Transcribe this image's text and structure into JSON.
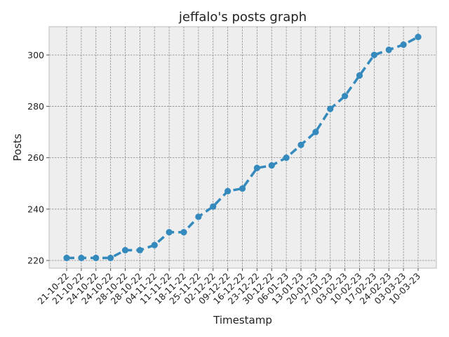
{
  "chart_data": {
    "type": "line",
    "title": "jeffalo's posts graph",
    "xlabel": "Timestamp",
    "ylabel": "Posts",
    "categories": [
      "21-10-22",
      "21-10-22",
      "24-10-22",
      "24-10-22",
      "28-10-22",
      "28-10-22",
      "04-11-22",
      "11-11-22",
      "18-11-22",
      "25-11-22",
      "02-12-22",
      "09-12-22",
      "16-12-22",
      "23-12-22",
      "30-12-22",
      "06-01-23",
      "13-01-23",
      "20-01-23",
      "27-01-23",
      "03-02-23",
      "10-02-23",
      "17-02-23",
      "24-02-23",
      "03-03-23",
      "10-03-23"
    ],
    "series": [
      {
        "values": [
          221,
          221,
          221,
          221,
          224,
          224,
          226,
          231,
          231,
          237,
          241,
          247,
          248,
          256,
          257,
          260,
          265,
          270,
          279,
          284,
          292,
          300,
          302,
          304,
          307
        ],
        "color": "#348abd",
        "line_style": "dashed",
        "marker": "circle"
      }
    ],
    "ylim": [
      217,
      311
    ],
    "yticks": [
      220,
      240,
      260,
      280,
      300
    ],
    "grid": true,
    "background": "#eeeeee"
  }
}
